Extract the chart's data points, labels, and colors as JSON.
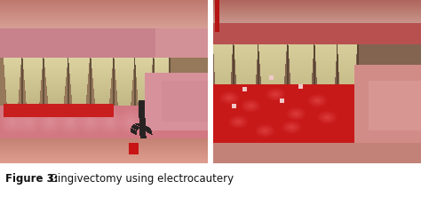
{
  "fig_width": 4.74,
  "fig_height": 2.22,
  "dpi": 100,
  "bg_color": "#ffffff",
  "caption_label": "Figure 3:",
  "caption_text": " Gingivectomy using electrocautery",
  "caption_fontsize": 8.5,
  "caption_bold_fontsize": 8.5,
  "left_photo": {
    "bg": [
      205,
      140,
      120
    ],
    "upper_lip": [
      210,
      150,
      140
    ],
    "gum_upper": [
      210,
      130,
      140
    ],
    "tooth": [
      220,
      210,
      160
    ],
    "gum_lower": [
      210,
      120,
      130
    ],
    "blood": [
      200,
      30,
      30
    ],
    "tissue": [
      190,
      110,
      100
    ],
    "instrument": [
      40,
      35,
      35
    ]
  },
  "right_photo": {
    "bg": [
      185,
      100,
      90
    ],
    "upper_lip": [
      210,
      150,
      140
    ],
    "gum_upper": [
      185,
      80,
      80
    ],
    "tooth": [
      215,
      205,
      155
    ],
    "blood": [
      200,
      25,
      25
    ],
    "tissue": [
      210,
      130,
      120
    ]
  },
  "divider_color": [
    255,
    255,
    255
  ],
  "border_color": [
    200,
    200,
    200
  ]
}
